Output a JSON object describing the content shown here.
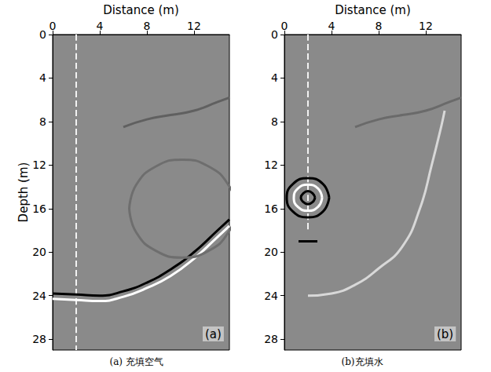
{
  "chart_data": [
    {
      "type": "line",
      "panel_label": "(a)",
      "caption": "(a) 充填空气",
      "xlabel": "Distance (m)",
      "ylabel": "Depth (m)",
      "xlim": [
        0,
        15
      ],
      "ylim": [
        0,
        29
      ],
      "xticks": [
        0,
        4,
        8,
        12
      ],
      "yticks": [
        0,
        4,
        8,
        12,
        16,
        20,
        24,
        28
      ],
      "grid": false,
      "series": [
        {
          "color": "#f2f2f2",
          "line_style": "dashed",
          "x": [
            2,
            2
          ],
          "values": [
            0,
            29
          ]
        },
        {
          "color": "#000000",
          "line_style": "solid",
          "x": [
            0,
            2,
            4,
            6,
            8,
            10,
            12,
            14,
            15
          ],
          "values": [
            23.8,
            23.9,
            24,
            23.6,
            22.8,
            21.6,
            20,
            18,
            17
          ]
        },
        {
          "color": "#ffffff",
          "line_style": "solid",
          "x": [
            0,
            2,
            4,
            6,
            8,
            10,
            12,
            14,
            15
          ],
          "values": [
            24.3,
            24.4,
            24.5,
            24.1,
            23.3,
            22.2,
            20.6,
            18.6,
            17.6
          ]
        },
        {
          "color": "#606060",
          "line_style": "solid",
          "x": [
            6,
            8,
            10,
            12,
            14,
            15
          ],
          "values": [
            8.5,
            7.8,
            7.4,
            7,
            6.2,
            5.8
          ]
        },
        {
          "color": "#6e6e6e",
          "line_style": "solid",
          "x": [
            6.5,
            7.1,
            8.8,
            11,
            13.2,
            14.9,
            15.5,
            14.9,
            13.2,
            11,
            8.8,
            7.1,
            6.5
          ],
          "values": [
            16,
            13.8,
            12.1,
            11.5,
            12.1,
            13.8,
            16,
            18.2,
            19.9,
            20.5,
            19.9,
            18.2,
            16
          ]
        }
      ]
    },
    {
      "type": "line",
      "panel_label": "(b)",
      "caption": "(b)充填水",
      "xlabel": "Distance (m)",
      "xlim": [
        0,
        15
      ],
      "ylim": [
        0,
        29
      ],
      "xticks": [
        0,
        4,
        8,
        12
      ],
      "yticks": [
        0,
        4,
        8,
        12,
        16,
        20,
        24,
        28
      ],
      "grid": false,
      "series": [
        {
          "color": "#f2f2f2",
          "line_style": "dashed",
          "x": [
            2,
            2
          ],
          "values": [
            0,
            18
          ]
        },
        {
          "color": "#000000",
          "line_style": "solid",
          "x": [
            2.6,
            2.4,
            2,
            1.6,
            1.4,
            1.6,
            2,
            2.4,
            2.6
          ],
          "values": [
            15,
            15.4,
            15.6,
            15.4,
            15,
            14.6,
            14.4,
            14.6,
            15
          ]
        },
        {
          "color": "#ffffff",
          "line_style": "solid",
          "x": [
            3.2,
            2.85,
            2,
            1.15,
            0.8,
            1.15,
            2,
            2.85,
            3.2
          ],
          "values": [
            15,
            15.85,
            16.2,
            15.85,
            15,
            14.15,
            13.8,
            14.15,
            15
          ]
        },
        {
          "color": "#000000",
          "line_style": "solid",
          "x": [
            3.8,
            3.27,
            2,
            0.73,
            0.2,
            0.73,
            2,
            3.27,
            3.8
          ],
          "values": [
            15,
            16.27,
            16.8,
            16.27,
            15,
            13.73,
            13.2,
            13.73,
            15
          ]
        },
        {
          "color": "#000000",
          "line_style": "solid",
          "x": [
            1.2,
            2.8
          ],
          "values": [
            19,
            19
          ]
        },
        {
          "color": "#d8d8d8",
          "line_style": "solid",
          "x": [
            2,
            4,
            6,
            8,
            10,
            11.5,
            12.5,
            13.3,
            13.6
          ],
          "values": [
            24,
            23.8,
            23,
            21.5,
            19.5,
            16,
            12,
            8.5,
            7
          ]
        },
        {
          "color": "#6a6a6a",
          "line_style": "solid",
          "x": [
            6,
            8,
            10,
            12,
            14,
            15
          ],
          "values": [
            8.5,
            7.8,
            7.4,
            7,
            6.2,
            5.8
          ]
        }
      ]
    }
  ]
}
